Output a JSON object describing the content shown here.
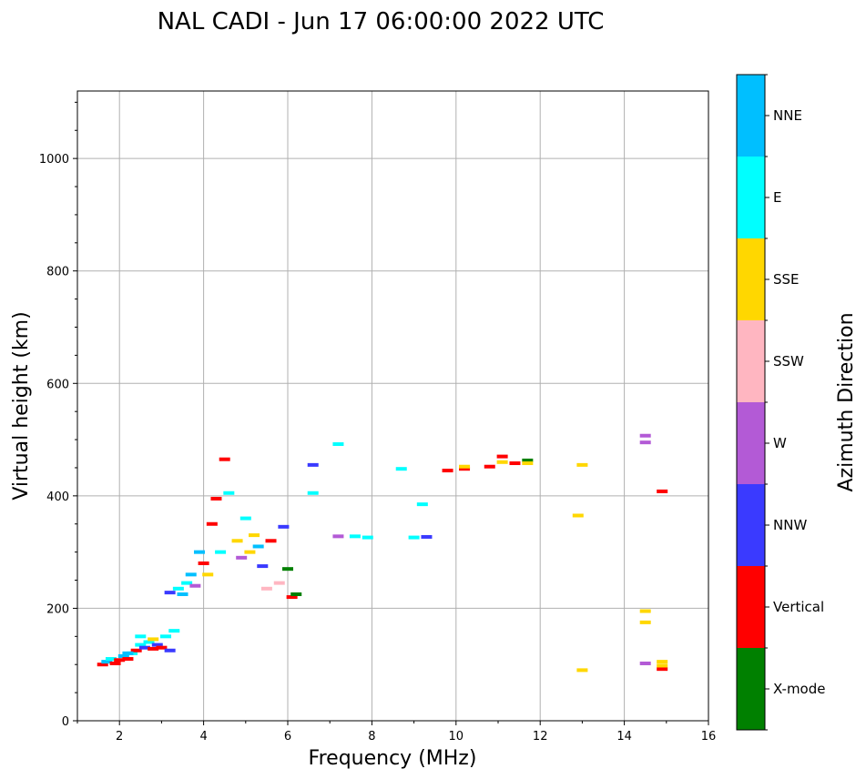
{
  "chart_data": {
    "type": "scatter",
    "title": "NAL CADI - Jun 17 06:00:00 2022 UTC",
    "xlabel": "Frequency (MHz)",
    "ylabel": "Virtual height (km)",
    "xlim": [
      1,
      16
    ],
    "ylim": [
      0,
      1120
    ],
    "x_ticks": [
      2,
      4,
      6,
      8,
      10,
      12,
      14,
      16
    ],
    "y_ticks": [
      0,
      200,
      400,
      600,
      800,
      1000
    ],
    "x_tick_labels": [
      "2",
      "4",
      "6",
      "8",
      "10",
      "12",
      "14",
      "16"
    ],
    "y_tick_labels": [
      "0",
      "200",
      "400",
      "600",
      "800",
      "1000"
    ],
    "grid": true,
    "colorbar": {
      "title": "Azimuth Direction",
      "categories": [
        {
          "label": "X-mode",
          "color": "#008000"
        },
        {
          "label": "Vertical",
          "color": "#ff0000"
        },
        {
          "label": "NNW",
          "color": "#3a3aff"
        },
        {
          "label": "W",
          "color": "#b35ad6"
        },
        {
          "label": "SSW",
          "color": "#ffb6c1"
        },
        {
          "label": "SSE",
          "color": "#ffd700"
        },
        {
          "label": "E",
          "color": "#00ffff"
        },
        {
          "label": "NNE",
          "color": "#00bfff"
        }
      ]
    },
    "points": [
      {
        "x": 1.6,
        "y": 100,
        "c": "Vertical"
      },
      {
        "x": 1.7,
        "y": 105,
        "c": "NNE"
      },
      {
        "x": 1.8,
        "y": 110,
        "c": "E"
      },
      {
        "x": 1.9,
        "y": 102,
        "c": "Vertical"
      },
      {
        "x": 2.0,
        "y": 108,
        "c": "Vertical"
      },
      {
        "x": 2.1,
        "y": 115,
        "c": "NNE"
      },
      {
        "x": 2.2,
        "y": 110,
        "c": "Vertical"
      },
      {
        "x": 2.3,
        "y": 120,
        "c": "E"
      },
      {
        "x": 2.4,
        "y": 125,
        "c": "Vertical"
      },
      {
        "x": 2.5,
        "y": 135,
        "c": "E"
      },
      {
        "x": 2.6,
        "y": 130,
        "c": "NNW"
      },
      {
        "x": 2.7,
        "y": 140,
        "c": "E"
      },
      {
        "x": 2.8,
        "y": 128,
        "c": "Vertical"
      },
      {
        "x": 2.9,
        "y": 135,
        "c": "NNW"
      },
      {
        "x": 3.0,
        "y": 130,
        "c": "Vertical"
      },
      {
        "x": 3.1,
        "y": 150,
        "c": "E"
      },
      {
        "x": 3.2,
        "y": 125,
        "c": "NNW"
      },
      {
        "x": 3.3,
        "y": 160,
        "c": "E"
      },
      {
        "x": 2.5,
        "y": 150,
        "c": "E"
      },
      {
        "x": 2.2,
        "y": 120,
        "c": "NNE"
      },
      {
        "x": 2.8,
        "y": 145,
        "c": "SSE"
      },
      {
        "x": 3.2,
        "y": 228,
        "c": "NNW"
      },
      {
        "x": 3.4,
        "y": 235,
        "c": "E"
      },
      {
        "x": 3.5,
        "y": 225,
        "c": "NNE"
      },
      {
        "x": 3.6,
        "y": 245,
        "c": "E"
      },
      {
        "x": 3.7,
        "y": 260,
        "c": "NNE"
      },
      {
        "x": 3.8,
        "y": 240,
        "c": "W"
      },
      {
        "x": 3.9,
        "y": 300,
        "c": "NNE"
      },
      {
        "x": 4.0,
        "y": 280,
        "c": "Vertical"
      },
      {
        "x": 4.1,
        "y": 260,
        "c": "SSE"
      },
      {
        "x": 4.2,
        "y": 350,
        "c": "Vertical"
      },
      {
        "x": 4.3,
        "y": 395,
        "c": "Vertical"
      },
      {
        "x": 4.4,
        "y": 300,
        "c": "E"
      },
      {
        "x": 4.5,
        "y": 465,
        "c": "Vertical"
      },
      {
        "x": 4.6,
        "y": 405,
        "c": "E"
      },
      {
        "x": 4.8,
        "y": 320,
        "c": "SSE"
      },
      {
        "x": 4.9,
        "y": 290,
        "c": "W"
      },
      {
        "x": 5.0,
        "y": 360,
        "c": "E"
      },
      {
        "x": 5.1,
        "y": 300,
        "c": "SSE"
      },
      {
        "x": 5.2,
        "y": 330,
        "c": "SSE"
      },
      {
        "x": 5.3,
        "y": 310,
        "c": "NNE"
      },
      {
        "x": 5.4,
        "y": 275,
        "c": "NNW"
      },
      {
        "x": 5.5,
        "y": 235,
        "c": "SSW"
      },
      {
        "x": 5.6,
        "y": 320,
        "c": "Vertical"
      },
      {
        "x": 5.8,
        "y": 245,
        "c": "SSW"
      },
      {
        "x": 5.9,
        "y": 345,
        "c": "NNW"
      },
      {
        "x": 6.0,
        "y": 270,
        "c": "X-mode"
      },
      {
        "x": 6.1,
        "y": 220,
        "c": "Vertical"
      },
      {
        "x": 6.2,
        "y": 225,
        "c": "X-mode"
      },
      {
        "x": 6.6,
        "y": 455,
        "c": "NNW"
      },
      {
        "x": 6.6,
        "y": 405,
        "c": "E"
      },
      {
        "x": 7.2,
        "y": 492,
        "c": "E"
      },
      {
        "x": 7.2,
        "y": 328,
        "c": "W"
      },
      {
        "x": 7.6,
        "y": 328,
        "c": "E"
      },
      {
        "x": 7.9,
        "y": 326,
        "c": "E"
      },
      {
        "x": 8.7,
        "y": 448,
        "c": "E"
      },
      {
        "x": 9.0,
        "y": 326,
        "c": "E"
      },
      {
        "x": 9.3,
        "y": 327,
        "c": "NNW"
      },
      {
        "x": 9.2,
        "y": 385,
        "c": "E"
      },
      {
        "x": 9.8,
        "y": 445,
        "c": "Vertical"
      },
      {
        "x": 10.2,
        "y": 448,
        "c": "Vertical"
      },
      {
        "x": 10.2,
        "y": 452,
        "c": "SSE"
      },
      {
        "x": 10.8,
        "y": 452,
        "c": "Vertical"
      },
      {
        "x": 11.1,
        "y": 470,
        "c": "Vertical"
      },
      {
        "x": 11.1,
        "y": 460,
        "c": "SSE"
      },
      {
        "x": 11.4,
        "y": 458,
        "c": "Vertical"
      },
      {
        "x": 11.7,
        "y": 463,
        "c": "X-mode"
      },
      {
        "x": 11.7,
        "y": 458,
        "c": "SSE"
      },
      {
        "x": 12.9,
        "y": 365,
        "c": "SSE"
      },
      {
        "x": 13.0,
        "y": 455,
        "c": "SSE"
      },
      {
        "x": 13.0,
        "y": 90,
        "c": "SSE"
      },
      {
        "x": 14.5,
        "y": 507,
        "c": "W"
      },
      {
        "x": 14.5,
        "y": 495,
        "c": "W"
      },
      {
        "x": 14.5,
        "y": 195,
        "c": "SSE"
      },
      {
        "x": 14.5,
        "y": 175,
        "c": "SSE"
      },
      {
        "x": 14.5,
        "y": 102,
        "c": "W"
      },
      {
        "x": 14.9,
        "y": 408,
        "c": "Vertical"
      },
      {
        "x": 14.9,
        "y": 105,
        "c": "SSE"
      },
      {
        "x": 14.9,
        "y": 92,
        "c": "Vertical"
      },
      {
        "x": 14.9,
        "y": 98,
        "c": "SSE"
      }
    ]
  }
}
